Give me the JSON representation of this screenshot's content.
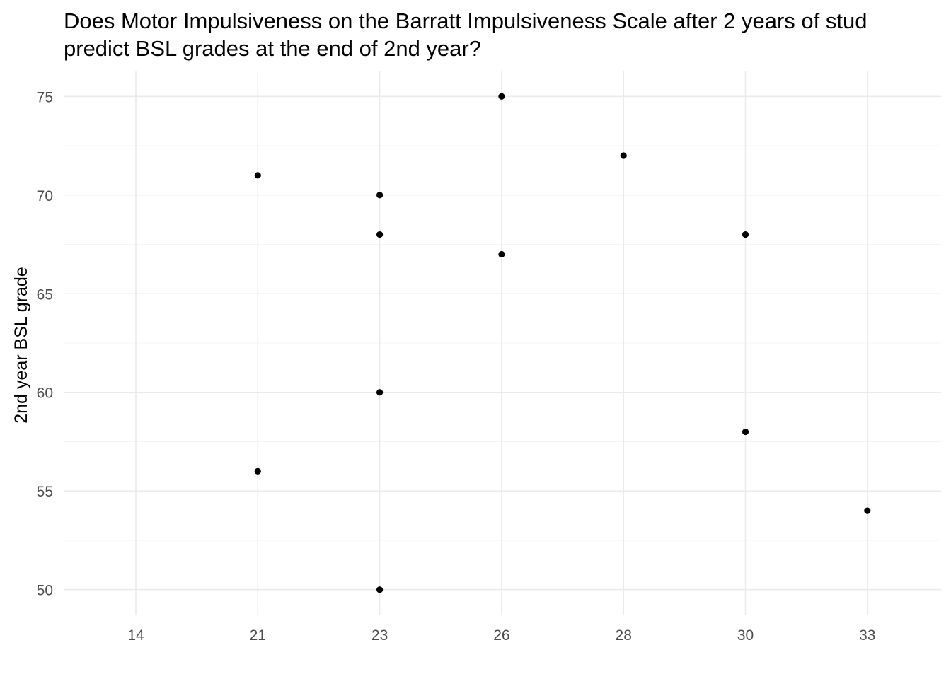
{
  "chart_data": {
    "type": "scatter",
    "title_lines": [
      "Does Motor Impulsiveness on the Barratt Impulsiveness Scale after 2 years of stud",
      "predict BSL grades at the end of 2nd year?"
    ],
    "xlabel": "",
    "ylabel": "2nd year BSL grade",
    "x_categories": [
      "14",
      "21",
      "23",
      "26",
      "28",
      "30",
      "33"
    ],
    "ylim": [
      48.7,
      76.3
    ],
    "y_ticks": [
      50,
      55,
      60,
      65,
      70,
      75
    ],
    "grid": true,
    "points": [
      {
        "x": "21",
        "y": 71
      },
      {
        "x": "21",
        "y": 56
      },
      {
        "x": "23",
        "y": 70
      },
      {
        "x": "23",
        "y": 68
      },
      {
        "x": "23",
        "y": 60
      },
      {
        "x": "23",
        "y": 50
      },
      {
        "x": "26",
        "y": 75
      },
      {
        "x": "26",
        "y": 67
      },
      {
        "x": "28",
        "y": 72
      },
      {
        "x": "30",
        "y": 68
      },
      {
        "x": "30",
        "y": 58
      },
      {
        "x": "33",
        "y": 54
      }
    ],
    "colors": {
      "background": "#ffffff",
      "grid_major": "#ebebeb",
      "grid_minor": "#f4f4f4",
      "point": "#000000",
      "tick_label": "#4d4d4d",
      "text": "#000000"
    }
  }
}
